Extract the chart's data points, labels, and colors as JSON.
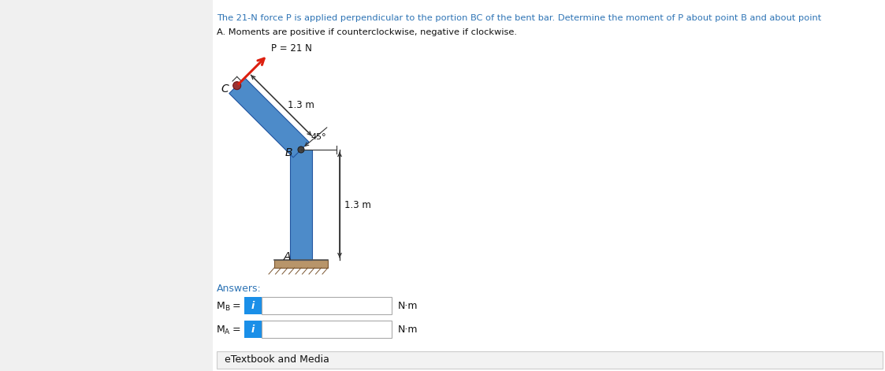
{
  "title_line1": "The 21-N force P is applied perpendicular to the portion BC of the bent bar. Determine the moment of P about point B and about point",
  "title_line2": "A. Moments are positive if counterclockwise, negative if clockwise.",
  "P_label": "P = 21 N",
  "dist_BC": "1.3 m",
  "dist_AB": "1.3 m",
  "angle_label": "45°",
  "label_B": "B",
  "label_C": "C",
  "label_A": "A",
  "answers_label": "Answers:",
  "unit_label": "N·m",
  "etextbook": "eTextbook and Media",
  "bar_color": "#4d8bc9",
  "bar_edge_color": "#2255a0",
  "ground_fill": "#b8956a",
  "ground_edge": "#7a5530",
  "arrow_color": "#dd2010",
  "dim_color": "#333333",
  "bg_color": "#f0f0f0",
  "panel_bg": "#ffffff",
  "info_blue": "#1a8fe8",
  "text_color": "#111111",
  "title_color": "#2e74b5",
  "answers_color": "#2e74b5",
  "dot_color": "#444444",
  "dot_C_color": "#993333"
}
